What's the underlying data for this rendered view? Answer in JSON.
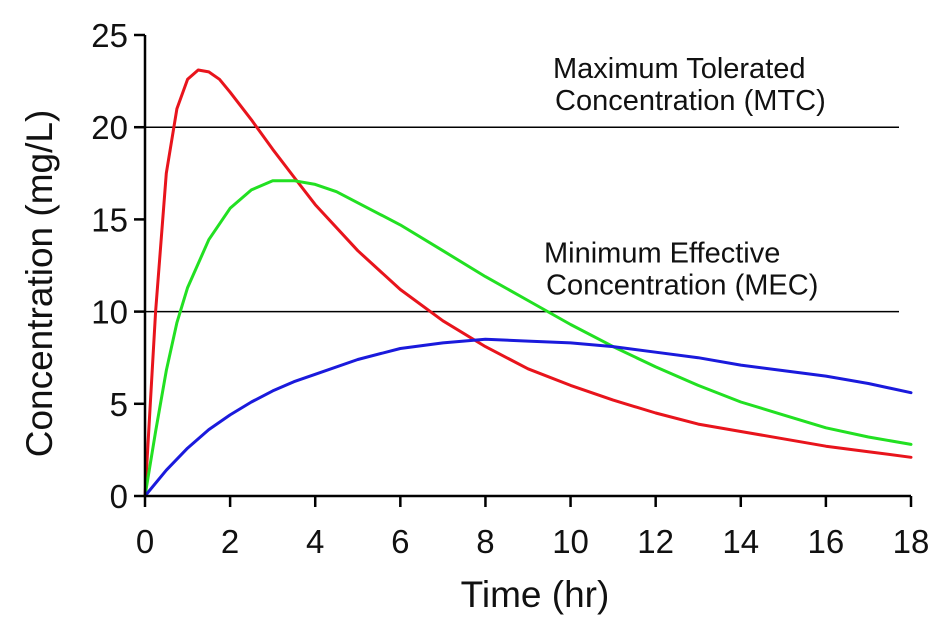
{
  "chart_data": {
    "type": "line",
    "title": "",
    "xlabel": "Time (hr)",
    "ylabel": "Concentration (mg/L)",
    "xlim": [
      0,
      18
    ],
    "ylim": [
      0,
      25
    ],
    "xticks": [
      0,
      2,
      4,
      6,
      8,
      10,
      12,
      14,
      16,
      18
    ],
    "yticks": [
      0,
      5,
      10,
      15,
      20,
      25
    ],
    "grid": false,
    "reference_lines": [
      {
        "y": 20,
        "label_lines": [
          "Maximum Tolerated",
          "Concentration (MTC)"
        ]
      },
      {
        "y": 10,
        "label_lines": [
          "Minimum Effective",
          "Concentration (MEC)"
        ]
      }
    ],
    "series": [
      {
        "color": "#e8141c",
        "x": [
          0,
          0.25,
          0.5,
          0.75,
          1.0,
          1.25,
          1.5,
          1.75,
          2.0,
          2.5,
          3.0,
          3.5,
          4.0,
          5.0,
          6.0,
          7.0,
          8.0,
          9.0,
          10.0,
          11.0,
          12.0,
          13.0,
          14.0,
          15.0,
          16.0,
          17.0,
          18.0
        ],
        "y": [
          0,
          10.0,
          17.5,
          21.0,
          22.6,
          23.1,
          23.0,
          22.6,
          21.9,
          20.4,
          18.8,
          17.3,
          15.8,
          13.3,
          11.2,
          9.5,
          8.1,
          6.9,
          6.0,
          5.2,
          4.5,
          3.9,
          3.5,
          3.1,
          2.7,
          2.4,
          2.1
        ]
      },
      {
        "color": "#22e022",
        "x": [
          0,
          0.25,
          0.5,
          0.75,
          1.0,
          1.5,
          2.0,
          2.5,
          3.0,
          3.5,
          4.0,
          4.5,
          5.0,
          6.0,
          7.0,
          8.0,
          9.0,
          10.0,
          11.0,
          12.0,
          13.0,
          14.0,
          15.0,
          16.0,
          17.0,
          18.0
        ],
        "y": [
          0,
          3.5,
          6.8,
          9.4,
          11.3,
          13.9,
          15.6,
          16.6,
          17.1,
          17.1,
          16.9,
          16.5,
          15.9,
          14.7,
          13.3,
          11.9,
          10.6,
          9.3,
          8.1,
          7.0,
          6.0,
          5.1,
          4.4,
          3.7,
          3.2,
          2.8
        ]
      },
      {
        "color": "#1a1adc",
        "x": [
          0,
          0.5,
          1.0,
          1.5,
          2.0,
          2.5,
          3.0,
          3.5,
          4.0,
          5.0,
          6.0,
          7.0,
          8.0,
          9.0,
          10.0,
          11.0,
          12.0,
          13.0,
          14.0,
          15.0,
          16.0,
          17.0,
          18.0
        ],
        "y": [
          0,
          1.4,
          2.6,
          3.6,
          4.4,
          5.1,
          5.7,
          6.2,
          6.6,
          7.4,
          8.0,
          8.3,
          8.5,
          8.4,
          8.3,
          8.1,
          7.8,
          7.5,
          7.1,
          6.8,
          6.5,
          6.1,
          5.6
        ]
      }
    ]
  }
}
